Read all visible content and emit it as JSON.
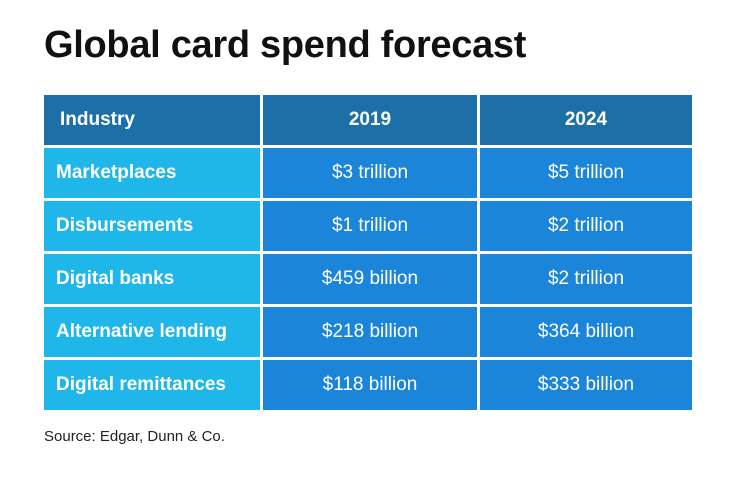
{
  "title": "Global card spend forecast",
  "source": "Source: Edgar, Dunn & Co.",
  "colors": {
    "header_bg": "#1d6fa8",
    "label_bg": "#1fb6ea",
    "value_bg": "#1b86d9",
    "text": "#ffffff"
  },
  "chart_data": {
    "type": "table",
    "title": "Global card spend forecast",
    "columns": [
      "Industry",
      "2019",
      "2024"
    ],
    "rows": [
      [
        "Marketplaces",
        "$3 trillion",
        "$5 trillion"
      ],
      [
        "Disbursements",
        "$1 trillion",
        "$2 trillion"
      ],
      [
        "Digital banks",
        "$459 billion",
        "$2 trillion"
      ],
      [
        "Alternative lending",
        "$218 billion",
        "$364 billion"
      ],
      [
        "Digital remittances",
        "$118 billion",
        "$333 billion"
      ]
    ],
    "source": "Source: Edgar, Dunn & Co."
  }
}
